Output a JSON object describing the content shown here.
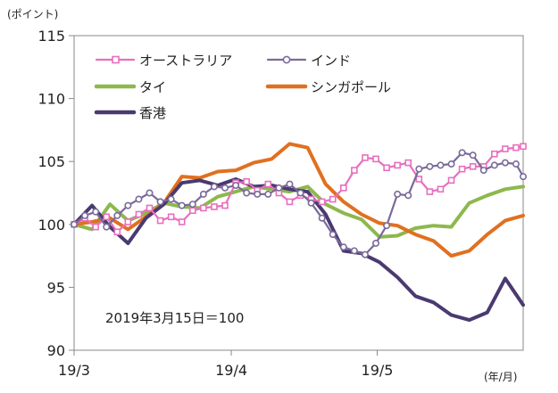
{
  "chart_data": {
    "type": "line",
    "y_unit_label": "(ポイント)",
    "x_unit_label": "(年/月)",
    "annotation": "2019年3月15日＝100",
    "ylim": [
      90,
      115
    ],
    "y_ticks": [
      90,
      95,
      100,
      105,
      110,
      115
    ],
    "xlim": [
      0,
      100
    ],
    "x_ticks": [
      {
        "label": "19/3",
        "x": 0
      },
      {
        "label": "19/4",
        "x": 35
      },
      {
        "label": "19/5",
        "x": 67.5
      }
    ],
    "legend_placement": "top",
    "grid": false,
    "series": [
      {
        "name": "オーストラリア",
        "color": "#e86fbf",
        "marker": "square",
        "x": [
          0,
          2.4,
          4.8,
          7.2,
          9.6,
          12,
          14.4,
          16.8,
          19.2,
          21.6,
          24,
          26.4,
          28.8,
          31.2,
          33.6,
          36,
          38.4,
          40.8,
          43.2,
          45.6,
          48,
          50.4,
          52.8,
          55.2,
          57.6,
          60,
          62.4,
          64.8,
          67.2,
          69.6,
          72,
          74.4,
          76.8,
          79.2,
          81.6,
          84,
          86.4,
          88.8,
          91.2,
          93.6,
          96,
          98.4,
          100
        ],
        "values": [
          100,
          100.5,
          99.8,
          100.6,
          99.4,
          100.2,
          100.8,
          101.3,
          100.3,
          100.6,
          100.2,
          101.1,
          101.3,
          101.4,
          101.5,
          103.3,
          103.4,
          102.7,
          103.2,
          102.5,
          101.8,
          102.3,
          102,
          101.8,
          102,
          102.9,
          104.3,
          105.3,
          105.2,
          104.5,
          104.7,
          104.9,
          103.6,
          102.6,
          102.8,
          103.5,
          104.4,
          104.6,
          104.6,
          105.6,
          106,
          106.1,
          106.2
        ]
      },
      {
        "name": "インド",
        "color": "#7a6a9a",
        "marker": "circle",
        "x": [
          0,
          2.4,
          4.8,
          7.2,
          9.6,
          12,
          14.4,
          16.8,
          19.2,
          21.6,
          24,
          26.4,
          28.8,
          31.2,
          33.6,
          36,
          38.4,
          40.8,
          43.2,
          45.6,
          48,
          50.4,
          52.8,
          55.2,
          57.6,
          60,
          62.4,
          64.8,
          67.2,
          69.6,
          72,
          74.4,
          76.8,
          79.2,
          81.6,
          84,
          86.4,
          88.8,
          91.2,
          93.6,
          96,
          98.4,
          100
        ],
        "values": [
          100,
          100.7,
          101,
          99.8,
          100.7,
          101.5,
          102,
          102.5,
          101.8,
          102,
          101.5,
          101.6,
          102.4,
          103,
          102.9,
          103.1,
          102.5,
          102.4,
          102.4,
          102.9,
          103.2,
          102.5,
          101.7,
          100.5,
          99.2,
          98.2,
          97.9,
          97.6,
          98.5,
          99.9,
          102.4,
          102.3,
          104.4,
          104.6,
          104.7,
          104.8,
          105.7,
          105.5,
          104.3,
          104.7,
          104.9,
          104.8,
          103.8
        ]
      },
      {
        "name": "タイ",
        "color": "#8db84e",
        "marker": "none",
        "x": [
          0,
          4,
          8,
          12,
          16,
          20,
          24,
          28,
          32,
          36,
          40,
          44,
          48,
          52,
          56,
          60,
          64,
          68,
          72,
          76,
          80,
          84,
          88,
          92,
          96,
          100
        ],
        "values": [
          100,
          99.6,
          101.6,
          100.3,
          100.9,
          101.7,
          101.4,
          101.3,
          102.2,
          102.6,
          103,
          102.8,
          102.6,
          103,
          101.6,
          100.9,
          100.4,
          99,
          99.1,
          99.7,
          99.9,
          99.8,
          101.7,
          102.3,
          102.8,
          103
        ]
      },
      {
        "name": "シンガポール",
        "color": "#e07020",
        "marker": "none",
        "x": [
          0,
          4,
          8,
          12,
          16,
          20,
          24,
          28,
          32,
          36,
          40,
          44,
          48,
          52,
          56,
          60,
          64,
          68,
          72,
          76,
          80,
          84,
          88,
          92,
          96,
          100
        ],
        "values": [
          100,
          100.2,
          100.5,
          99.6,
          100.6,
          101.7,
          103.8,
          103.7,
          104.2,
          104.3,
          104.9,
          105.2,
          106.4,
          106.1,
          103.2,
          101.8,
          100.8,
          100.1,
          99.9,
          99.2,
          98.7,
          97.5,
          97.9,
          99.2,
          100.3,
          100.7
        ]
      },
      {
        "name": "香港",
        "color": "#4a3a70",
        "marker": "none",
        "x": [
          0,
          4,
          8,
          12,
          16,
          20,
          24,
          28,
          32,
          36,
          40,
          44,
          48,
          52,
          56,
          60,
          64,
          68,
          72,
          76,
          80,
          84,
          88,
          92,
          96,
          100
        ],
        "values": [
          100,
          101.5,
          99.8,
          98.5,
          100.5,
          101.6,
          103.3,
          103.5,
          103.1,
          103.6,
          103,
          103.1,
          102.8,
          102.6,
          100.8,
          97.9,
          97.7,
          97,
          95.8,
          94.3,
          93.8,
          92.8,
          92.4,
          93,
          95.7,
          93.6
        ]
      }
    ]
  }
}
